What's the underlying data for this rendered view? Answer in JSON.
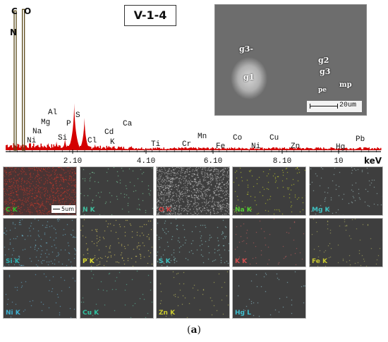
{
  "chart_data": {
    "type": "bar",
    "title": "V-1-4",
    "x_unit": "keV",
    "x_ticks": [
      "2.10",
      "4.10",
      "6.10",
      "8.10",
      "10"
    ],
    "xlim": [
      0,
      11
    ],
    "peaks": [
      {
        "element": "C",
        "energy": 0.28,
        "height": 95,
        "bold": true
      },
      {
        "element": "O",
        "energy": 0.52,
        "height": 96,
        "bold": true
      },
      {
        "element": "N",
        "energy": 0.39,
        "height": 0,
        "bold": true
      },
      {
        "element": "Na",
        "energy": 1.04,
        "height": 4
      },
      {
        "element": "Mg",
        "energy": 1.25,
        "height": 5
      },
      {
        "element": "Al",
        "energy": 1.49,
        "height": 6
      },
      {
        "element": "Si",
        "energy": 1.74,
        "height": 8
      },
      {
        "element": "P",
        "energy": 2.01,
        "height": 32
      },
      {
        "element": "S",
        "energy": 2.31,
        "height": 22
      },
      {
        "element": "Cl",
        "energy": 2.62,
        "height": 4
      },
      {
        "element": "K",
        "energy": 3.31,
        "height": 3
      },
      {
        "element": "Cd",
        "energy": 3.13,
        "height": 2
      },
      {
        "element": "Ca",
        "energy": 3.69,
        "height": 3
      },
      {
        "element": "Ti",
        "energy": 4.51,
        "height": 2
      },
      {
        "element": "Cr",
        "energy": 5.41,
        "height": 2
      },
      {
        "element": "Mn",
        "energy": 5.9,
        "height": 2
      },
      {
        "element": "Fe",
        "energy": 6.4,
        "height": 2
      },
      {
        "element": "Co",
        "energy": 6.93,
        "height": 2
      },
      {
        "element": "Ni",
        "energy": 7.47,
        "height": 2
      },
      {
        "element": "Cu",
        "energy": 8.04,
        "height": 2
      },
      {
        "element": "Zn",
        "energy": 8.63,
        "height": 2
      },
      {
        "element": "Hg",
        "energy": 9.99,
        "height": 2
      },
      {
        "element": "Pb",
        "energy": 10.55,
        "height": 2
      }
    ],
    "extra_labels": [
      {
        "element": "Ni",
        "energy": 0.85
      }
    ]
  },
  "sem_image": {
    "labels": [
      "g1",
      "g2",
      "g3",
      "g3-",
      "mp",
      "pe"
    ],
    "scale_text": "20um"
  },
  "maps": [
    {
      "label": "C K",
      "color": "#2fbf2f",
      "dot": "#c0392b",
      "density": 900,
      "scale": "5um"
    },
    {
      "label": "N K",
      "color": "#3fbf9f",
      "dot": "#7fcf9f",
      "density": 90
    },
    {
      "label": "O K",
      "color": "#d04040",
      "dot": "#bdbdbd",
      "density": 1100
    },
    {
      "label": "Na K",
      "color": "#55cc33",
      "dot": "#c8d02a",
      "density": 120
    },
    {
      "label": "Mg K",
      "color": "#3fc0c0",
      "dot": "#a0c0c0",
      "density": 80
    },
    {
      "label": "Si K",
      "color": "#2fb0b0",
      "dot": "#6fb8d0",
      "density": 160
    },
    {
      "label": "P K",
      "color": "#d8d830",
      "dot": "#e0d060",
      "density": 140
    },
    {
      "label": "S K",
      "color": "#40c0c0",
      "dot": "#8fcfcf",
      "density": 130
    },
    {
      "label": "K K",
      "color": "#d05050",
      "dot": "#c06060",
      "density": 60
    },
    {
      "label": "Fe K",
      "color": "#c8c830",
      "dot": "#b0b060",
      "density": 70
    },
    {
      "label": "Ni K",
      "color": "#40b0d0",
      "dot": "#6ab0d0",
      "density": 50
    },
    {
      "label": "Cu K",
      "color": "#30c0a0",
      "dot": "#60c0a0",
      "density": 40
    },
    {
      "label": "Zn K",
      "color": "#c8c830",
      "dot": "#c0c060",
      "density": 50
    },
    {
      "label": "Hg L",
      "color": "#40c0d0",
      "dot": "#8fc8d0",
      "density": 40
    }
  ],
  "caption": {
    "prefix": "(",
    "letter": "a",
    "suffix": ")"
  }
}
